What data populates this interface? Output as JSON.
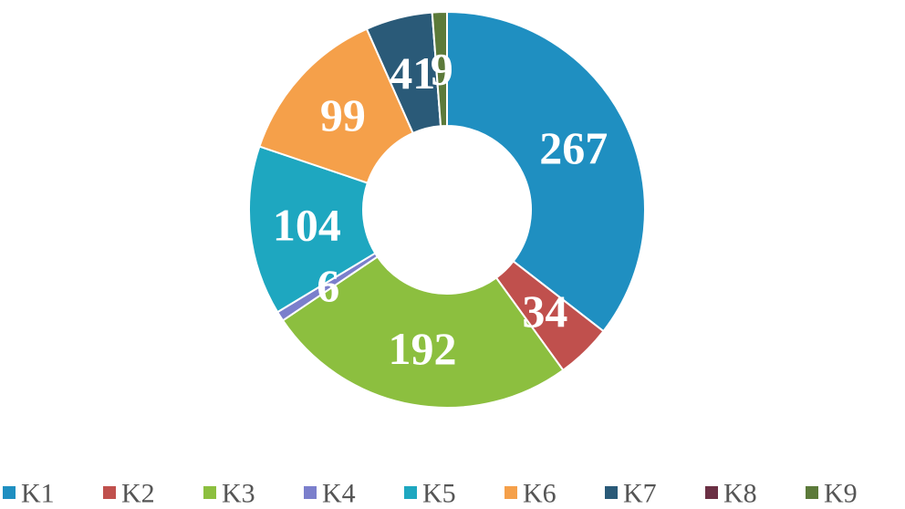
{
  "chart_data": {
    "type": "donut",
    "categories": [
      "K1",
      "K2",
      "K3",
      "K4",
      "K5",
      "K6",
      "K7",
      "K8",
      "K9"
    ],
    "series": [
      {
        "values": [
          267,
          34,
          192,
          6,
          104,
          99,
          41,
          0,
          9
        ]
      }
    ],
    "colors": [
      "#1f8fc1",
      "#c0504d",
      "#8cbf3f",
      "#7b7fcc",
      "#1ea7c0",
      "#f5a04a",
      "#2a5a78",
      "#6b3044",
      "#5c7a3a"
    ],
    "legend": "bottom"
  }
}
